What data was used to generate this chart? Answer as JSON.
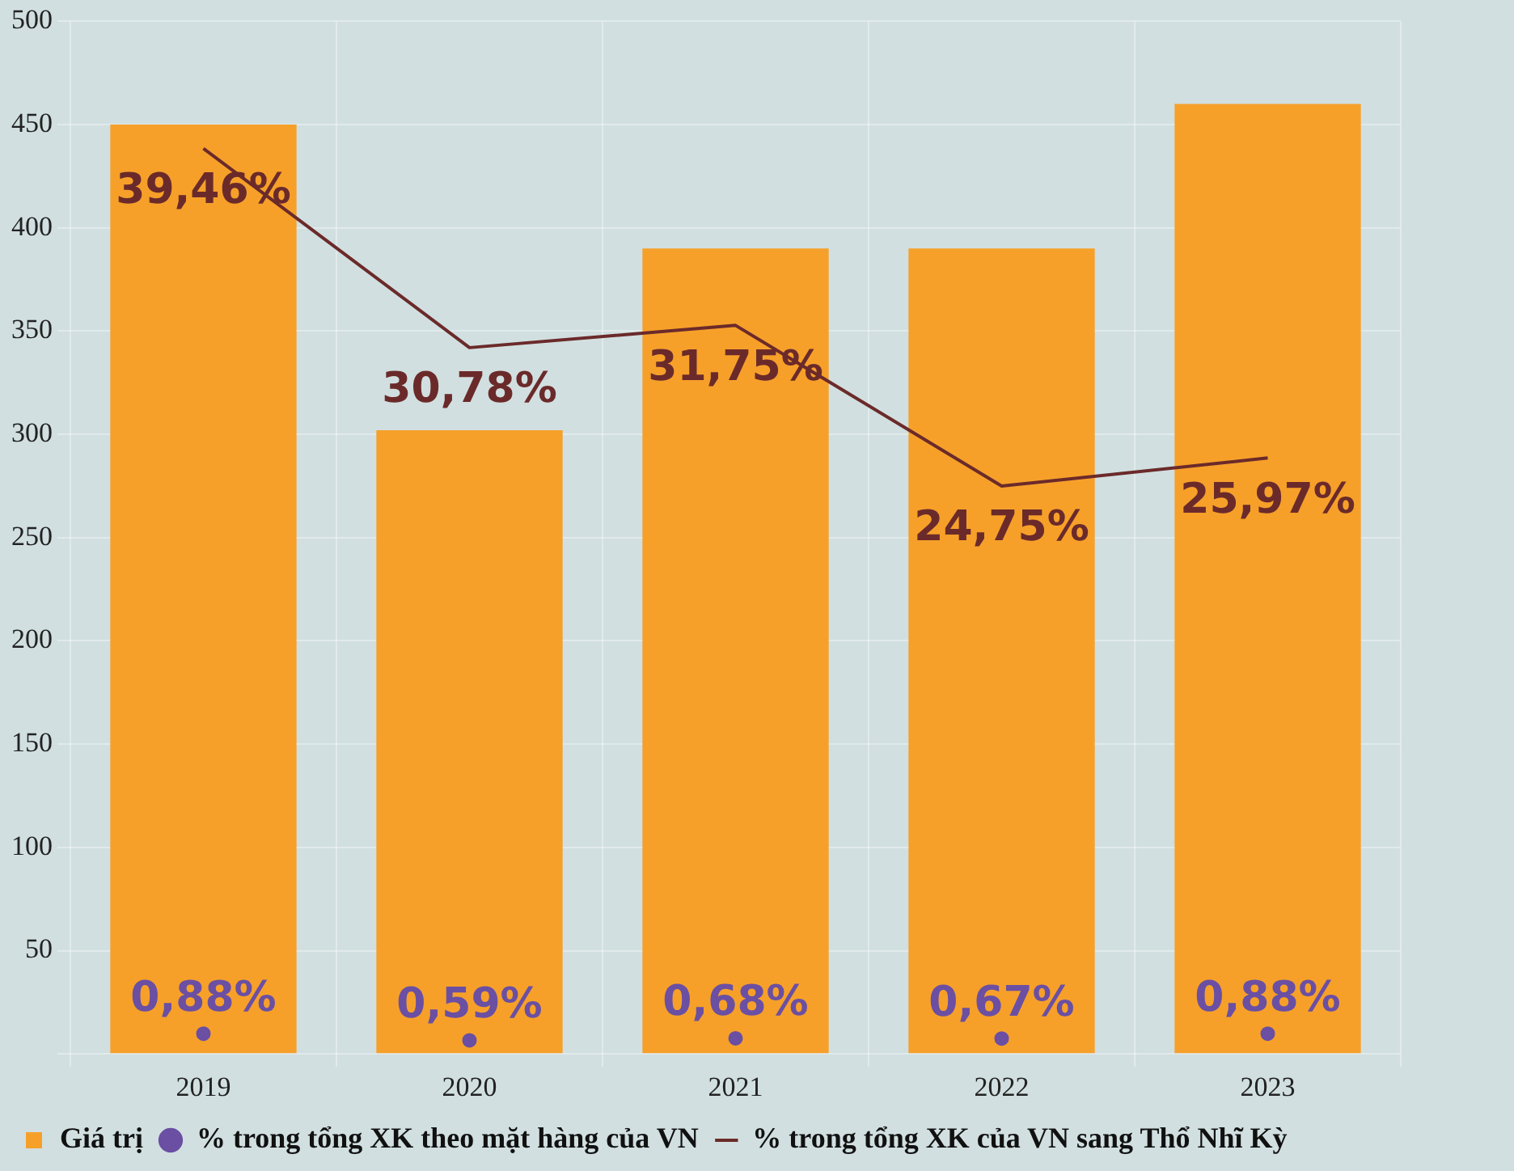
{
  "chart_data": {
    "type": "bar",
    "categories": [
      "2019",
      "2020",
      "2021",
      "2022",
      "2023"
    ],
    "series": [
      {
        "name": "Giá trị",
        "color": "#f6a02a",
        "values": [
          450,
          302,
          390,
          390,
          460
        ]
      },
      {
        "name": "% trong tổng XK theo mặt hàng của VN",
        "type": "scatter",
        "axis": "y2",
        "color": "#6a4fa3",
        "values": [
          0.88,
          0.59,
          0.68,
          0.67,
          0.88
        ],
        "value_labels": [
          "0,88%",
          "0,59%",
          "0,68%",
          "0,67%",
          "0,88%"
        ]
      },
      {
        "name": "% trong tổng XK của VN sang Thổ Nhĩ Kỳ",
        "type": "line",
        "axis": "y2",
        "color": "#6b2a2a",
        "marker": "none",
        "values": [
          39.46,
          30.78,
          31.75,
          24.75,
          25.97
        ],
        "value_labels": [
          "39,46%",
          "30,78%",
          "31,75%",
          "24,75%",
          "25,97%"
        ]
      }
    ],
    "ylim": [
      0,
      500
    ],
    "yticks": [
      {
        "value": 0,
        "label": null
      },
      50,
      100,
      150,
      200,
      250,
      300,
      350,
      400,
      450,
      500
    ],
    "y2lim": [
      0,
      45
    ],
    "grid": true,
    "legend": "bottom left"
  }
}
